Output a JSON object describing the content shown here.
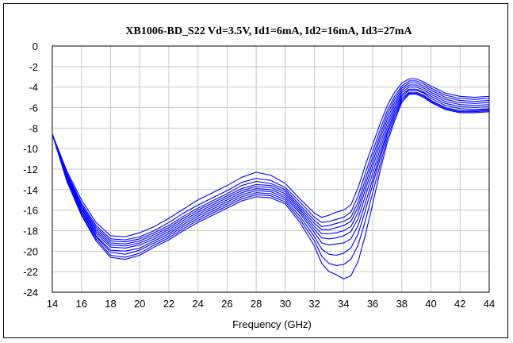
{
  "chart_data": {
    "type": "line",
    "title": "XB1006-BD_S22  Vd=3.5V, Id1=6mA, Id2=16mA, Id3=27mA",
    "xlabel": "Frequency (GHz)",
    "ylabel": "",
    "xlim": [
      14,
      44
    ],
    "ylim": [
      -24,
      0
    ],
    "xticks": [
      14,
      16,
      18,
      20,
      22,
      24,
      26,
      28,
      30,
      32,
      34,
      36,
      38,
      40,
      42,
      44
    ],
    "yticks": [
      0,
      -2,
      -4,
      -6,
      -8,
      -10,
      -12,
      -14,
      -16,
      -18,
      -20,
      -22,
      -24
    ],
    "grid": true,
    "legend": "none",
    "line_color": "#0000ff",
    "x": [
      14,
      15,
      16,
      17,
      18,
      19,
      20,
      21,
      22,
      23,
      24,
      25,
      26,
      27,
      28,
      29,
      30,
      31,
      32,
      32.5,
      33,
      33.5,
      34,
      34.5,
      35,
      35.5,
      36,
      36.5,
      37,
      37.5,
      38,
      38.5,
      39,
      39.5,
      40,
      41,
      42,
      43,
      44
    ],
    "series": [
      {
        "values": [
          -8.6,
          -12.2,
          -15.0,
          -17.2,
          -18.5,
          -18.6,
          -18.2,
          -17.6,
          -16.8,
          -15.9,
          -15.0,
          -14.3,
          -13.6,
          -12.8,
          -12.3,
          -12.6,
          -13.4,
          -14.9,
          -16.3,
          -16.7,
          -16.5,
          -16.2,
          -16.0,
          -15.5,
          -13.8,
          -11.6,
          -9.6,
          -7.6,
          -5.8,
          -4.5,
          -3.6,
          -3.2,
          -3.2,
          -3.5,
          -3.9,
          -4.6,
          -4.9,
          -5.0,
          -4.9
        ]
      },
      {
        "values": [
          -8.6,
          -12.4,
          -15.3,
          -17.5,
          -18.8,
          -18.9,
          -18.6,
          -18.0,
          -17.2,
          -16.3,
          -15.5,
          -14.8,
          -14.1,
          -13.3,
          -12.9,
          -13.1,
          -13.8,
          -15.2,
          -16.7,
          -17.2,
          -17.1,
          -16.9,
          -16.7,
          -16.2,
          -14.6,
          -12.4,
          -10.3,
          -8.2,
          -6.3,
          -4.9,
          -3.9,
          -3.4,
          -3.4,
          -3.7,
          -4.1,
          -4.8,
          -5.1,
          -5.2,
          -5.1
        ]
      },
      {
        "values": [
          -8.6,
          -12.5,
          -15.5,
          -17.7,
          -19.0,
          -19.1,
          -18.8,
          -18.2,
          -17.5,
          -16.6,
          -15.8,
          -15.1,
          -14.4,
          -13.6,
          -13.2,
          -13.4,
          -14.0,
          -15.5,
          -17.0,
          -17.6,
          -17.5,
          -17.3,
          -17.1,
          -16.7,
          -15.2,
          -13.0,
          -10.8,
          -8.7,
          -6.7,
          -5.2,
          -4.1,
          -3.6,
          -3.6,
          -3.9,
          -4.3,
          -5.0,
          -5.3,
          -5.4,
          -5.3
        ]
      },
      {
        "values": [
          -8.6,
          -12.6,
          -15.6,
          -17.9,
          -19.2,
          -19.3,
          -19.0,
          -18.4,
          -17.7,
          -16.8,
          -16.0,
          -15.3,
          -14.6,
          -13.9,
          -13.5,
          -13.6,
          -14.2,
          -15.7,
          -17.3,
          -17.9,
          -17.9,
          -17.7,
          -17.5,
          -17.1,
          -15.7,
          -13.5,
          -11.3,
          -9.1,
          -7.1,
          -5.5,
          -4.3,
          -3.8,
          -3.8,
          -4.1,
          -4.5,
          -5.2,
          -5.5,
          -5.6,
          -5.5
        ]
      },
      {
        "values": [
          -8.6,
          -12.7,
          -15.8,
          -18.1,
          -19.4,
          -19.5,
          -19.2,
          -18.6,
          -17.9,
          -17.0,
          -16.2,
          -15.5,
          -14.8,
          -14.1,
          -13.7,
          -13.8,
          -14.4,
          -15.9,
          -17.6,
          -18.3,
          -18.3,
          -18.2,
          -18.0,
          -17.6,
          -16.2,
          -14.0,
          -11.8,
          -9.6,
          -7.5,
          -5.8,
          -4.5,
          -4.0,
          -4.0,
          -4.3,
          -4.7,
          -5.4,
          -5.7,
          -5.8,
          -5.7
        ]
      },
      {
        "values": [
          -8.6,
          -12.8,
          -15.9,
          -18.3,
          -19.6,
          -19.7,
          -19.4,
          -18.8,
          -18.1,
          -17.2,
          -16.4,
          -15.7,
          -15.0,
          -14.3,
          -13.9,
          -14.0,
          -14.6,
          -16.1,
          -17.9,
          -18.7,
          -18.8,
          -18.7,
          -18.5,
          -18.1,
          -16.8,
          -14.6,
          -12.4,
          -10.1,
          -7.9,
          -6.1,
          -4.7,
          -4.2,
          -4.2,
          -4.5,
          -4.9,
          -5.6,
          -5.9,
          -6.0,
          -5.9
        ]
      },
      {
        "values": [
          -8.6,
          -12.9,
          -16.1,
          -18.5,
          -19.9,
          -20.0,
          -19.7,
          -19.0,
          -18.3,
          -17.4,
          -16.6,
          -15.9,
          -15.2,
          -14.5,
          -14.1,
          -14.2,
          -14.8,
          -16.3,
          -18.2,
          -19.2,
          -19.4,
          -19.3,
          -19.2,
          -18.8,
          -17.5,
          -15.3,
          -13.0,
          -10.6,
          -8.3,
          -6.4,
          -4.9,
          -4.3,
          -4.3,
          -4.6,
          -5.1,
          -5.8,
          -6.1,
          -6.2,
          -6.1
        ]
      },
      {
        "values": [
          -8.6,
          -13.0,
          -16.2,
          -18.6,
          -20.1,
          -20.3,
          -19.9,
          -19.2,
          -18.5,
          -17.6,
          -16.8,
          -16.1,
          -15.4,
          -14.7,
          -14.3,
          -14.4,
          -15.0,
          -16.6,
          -18.6,
          -19.8,
          -20.3,
          -20.4,
          -20.2,
          -19.7,
          -18.3,
          -16.0,
          -13.5,
          -11.0,
          -8.6,
          -6.7,
          -5.1,
          -4.5,
          -4.5,
          -4.8,
          -5.3,
          -6.0,
          -6.3,
          -6.3,
          -6.2
        ]
      },
      {
        "values": [
          -8.6,
          -13.1,
          -16.4,
          -18.8,
          -20.4,
          -20.6,
          -20.2,
          -19.4,
          -18.7,
          -17.8,
          -17.0,
          -16.3,
          -15.6,
          -14.9,
          -14.5,
          -14.6,
          -15.2,
          -16.9,
          -19.0,
          -20.5,
          -21.2,
          -21.4,
          -21.3,
          -20.8,
          -19.4,
          -17.0,
          -14.3,
          -11.6,
          -9.0,
          -7.0,
          -5.3,
          -4.6,
          -4.6,
          -4.9,
          -5.4,
          -6.1,
          -6.4,
          -6.4,
          -6.3
        ]
      },
      {
        "values": [
          -8.6,
          -13.2,
          -16.5,
          -19.0,
          -20.6,
          -20.8,
          -20.4,
          -19.6,
          -18.9,
          -18.0,
          -17.2,
          -16.5,
          -15.8,
          -15.1,
          -14.7,
          -14.8,
          -15.4,
          -17.2,
          -19.5,
          -21.2,
          -22.0,
          -22.3,
          -22.7,
          -22.4,
          -21.0,
          -18.4,
          -15.4,
          -12.2,
          -9.4,
          -7.3,
          -5.5,
          -4.7,
          -4.7,
          -5.0,
          -5.5,
          -6.2,
          -6.5,
          -6.5,
          -6.4
        ]
      }
    ]
  }
}
